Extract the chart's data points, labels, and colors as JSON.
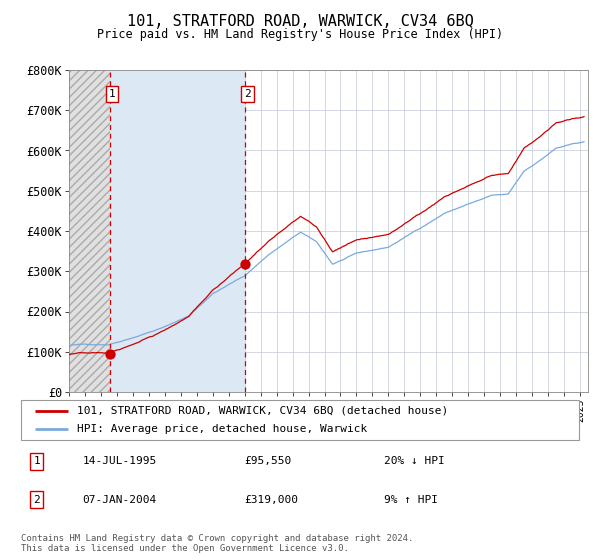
{
  "title": "101, STRATFORD ROAD, WARWICK, CV34 6BQ",
  "subtitle": "Price paid vs. HM Land Registry's House Price Index (HPI)",
  "purchase1_price": 95550,
  "purchase2_price": 319000,
  "legend_property": "101, STRATFORD ROAD, WARWICK, CV34 6BQ (detached house)",
  "legend_hpi": "HPI: Average price, detached house, Warwick",
  "footer": "Contains HM Land Registry data © Crown copyright and database right 2024.\nThis data is licensed under the Open Government Licence v3.0.",
  "hpi_color": "#7aaadd",
  "property_color": "#cc0000",
  "vline_color": "#cc0000",
  "marker_color": "#cc0000",
  "bg_hatch_fill": "#dde8f5",
  "bg_chart": "#ffffff",
  "ylim": [
    0,
    800000
  ],
  "yticks": [
    0,
    100000,
    200000,
    300000,
    400000,
    500000,
    600000,
    700000,
    800000
  ],
  "start_year": 1993.0,
  "end_year": 2025.5,
  "t1": 1995.542,
  "t2": 2004.025,
  "ann1_date": "14-JUL-1995",
  "ann1_price": "£95,550",
  "ann1_note": "20% ↓ HPI",
  "ann2_date": "07-JAN-2004",
  "ann2_price": "£319,000",
  "ann2_note": "9% ↑ HPI"
}
